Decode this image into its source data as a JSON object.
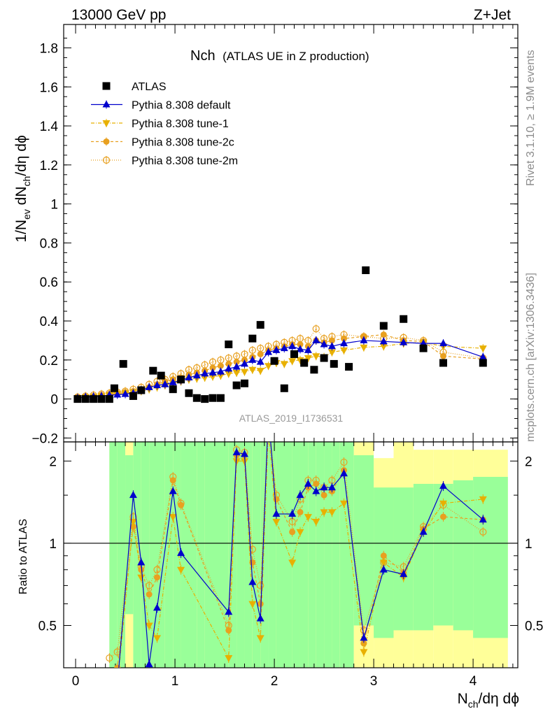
{
  "header": {
    "left": "13000 GeV pp",
    "right": "Z+Jet"
  },
  "side": {
    "rivet": "Rivet 3.1.10, ≥ 1.9M events",
    "mcplots": "mcplots.cern.ch [arXiv:1306.3436]"
  },
  "chart_data": {
    "type": "line",
    "title_main": "Nch",
    "title_sub": "(ATLAS UE in Z production)",
    "analysis_label": "ATLAS_2019_I1736531",
    "xlabel": {
      "base": "N",
      "sub": "ch",
      "rest": "/dη dϕ"
    },
    "ylabel": {
      "parts": [
        "1/N",
        "ev",
        " dN",
        "ch",
        "/dη dϕ"
      ]
    },
    "ratio_ylabel": "Ratio to ATLAS",
    "xlim": [
      -0.12,
      4.45
    ],
    "ylim": [
      -0.22,
      1.92
    ],
    "ratio_ylim": [
      0.35,
      2.35
    ],
    "x_ticks": [
      0,
      1,
      2,
      3,
      4
    ],
    "y_ticks": [
      -0.2,
      0,
      0.2,
      0.4,
      0.6,
      0.8,
      1,
      1.2,
      1.4,
      1.6,
      1.8
    ],
    "y_tick_labels": [
      "−0.2",
      "0",
      "0.2",
      "0.4",
      "0.6",
      "0.8",
      "1",
      "1.2",
      "1.4",
      "1.6",
      "1.8"
    ],
    "ratio_ticks": [
      0.5,
      1,
      2
    ],
    "ratio_tick_labels": [
      "0.5",
      "1",
      "2"
    ],
    "legend": [
      {
        "label": "ATLAS",
        "marker": "square",
        "color": "#000000",
        "dash": ""
      },
      {
        "label": "Pythia 8.308 default",
        "marker": "triangle-up",
        "color": "#0000cc",
        "dash": ""
      },
      {
        "label": "Pythia 8.308 tune-1",
        "marker": "triangle-down",
        "color": "#e8b000",
        "dash": "5,2,1,2"
      },
      {
        "label": "Pythia 8.308 tune-2c",
        "marker": "circle",
        "color": "#e8a020",
        "dash": "4,3"
      },
      {
        "label": "Pythia 8.308 tune-2m",
        "marker": "circle-open",
        "color": "#e8a020",
        "dash": "1,2"
      }
    ],
    "x": [
      0.02,
      0.1,
      0.18,
      0.26,
      0.34,
      0.42,
      0.5,
      0.58,
      0.66,
      0.74,
      0.82,
      0.9,
      0.98,
      1.06,
      1.14,
      1.22,
      1.3,
      1.38,
      1.46,
      1.54,
      1.62,
      1.7,
      1.78,
      1.86,
      1.94,
      2.02,
      2.1,
      2.18,
      2.26,
      2.34,
      2.42,
      2.5,
      2.58,
      2.7,
      2.9,
      3.1,
      3.3,
      3.5,
      3.7,
      4.1
    ],
    "atlas": [
      0.0,
      0.0,
      0.0,
      0.0,
      0.0,
      0.055,
      0.18,
      0.015,
      0.045,
      0.145,
      0.12,
      0.05,
      0.1,
      0.03,
      0.005,
      0.0,
      0.005,
      0.005,
      0.28,
      0.07,
      0.08,
      0.31,
      0.38,
      0.195,
      0.055,
      0.23,
      0.185,
      0.15,
      0.21,
      0.18,
      0.165,
      0.66,
      0.375,
      0.41,
      0.26,
      0.185,
      0.185
    ],
    "atlas_x": [
      0.02,
      0.1,
      0.18,
      0.26,
      0.34,
      0.39,
      0.48,
      0.58,
      0.66,
      0.78,
      0.86,
      0.98,
      1.06,
      1.14,
      1.22,
      1.3,
      1.38,
      1.46,
      1.54,
      1.62,
      1.7,
      1.78,
      1.86,
      2.0,
      2.1,
      2.2,
      2.3,
      2.4,
      2.5,
      2.6,
      2.75,
      2.92,
      3.1,
      3.3,
      3.5,
      3.7,
      4.1
    ],
    "series": [
      {
        "name": "Pythia 8.308 default",
        "values": [
          0.005,
          0.01,
          0.012,
          0.015,
          0.02,
          0.022,
          0.025,
          0.03,
          0.045,
          0.06,
          0.07,
          0.075,
          0.085,
          0.095,
          0.11,
          0.12,
          0.13,
          0.135,
          0.14,
          0.155,
          0.165,
          0.18,
          0.2,
          0.19,
          0.24,
          0.25,
          0.26,
          0.27,
          0.255,
          0.25,
          0.3,
          0.28,
          0.27,
          0.285,
          0.3,
          0.295,
          0.29,
          0.285,
          0.285,
          0.215
        ]
      },
      {
        "name": "Pythia 8.308 tune-1",
        "values": [
          0.005,
          0.01,
          0.012,
          0.015,
          0.02,
          0.025,
          0.03,
          0.035,
          0.04,
          0.05,
          0.06,
          0.07,
          0.08,
          0.09,
          0.1,
          0.105,
          0.11,
          0.115,
          0.12,
          0.13,
          0.135,
          0.14,
          0.15,
          0.145,
          0.17,
          0.185,
          0.18,
          0.195,
          0.2,
          0.21,
          0.22,
          0.215,
          0.24,
          0.25,
          0.265,
          0.27,
          0.285,
          0.29,
          0.27,
          0.26
        ]
      },
      {
        "name": "Pythia 8.308 tune-2c",
        "values": [
          0.008,
          0.012,
          0.015,
          0.02,
          0.025,
          0.03,
          0.035,
          0.04,
          0.05,
          0.06,
          0.075,
          0.09,
          0.1,
          0.11,
          0.125,
          0.135,
          0.145,
          0.16,
          0.17,
          0.18,
          0.19,
          0.2,
          0.215,
          0.23,
          0.25,
          0.26,
          0.27,
          0.28,
          0.28,
          0.27,
          0.3,
          0.29,
          0.3,
          0.31,
          0.32,
          0.33,
          0.3,
          0.295,
          0.22,
          0.205
        ]
      },
      {
        "name": "Pythia 8.308 tune-2m",
        "values": [
          0.01,
          0.015,
          0.02,
          0.025,
          0.03,
          0.035,
          0.04,
          0.05,
          0.06,
          0.075,
          0.09,
          0.1,
          0.115,
          0.13,
          0.15,
          0.16,
          0.175,
          0.19,
          0.2,
          0.21,
          0.22,
          0.23,
          0.25,
          0.26,
          0.27,
          0.28,
          0.29,
          0.3,
          0.31,
          0.3,
          0.36,
          0.31,
          0.32,
          0.33,
          0.32,
          0.31,
          0.315,
          0.3,
          0.24,
          0.21
        ]
      }
    ],
    "ratio": {
      "x": [
        0.34,
        0.42,
        0.58,
        0.66,
        0.74,
        0.82,
        0.98,
        1.06,
        1.54,
        1.62,
        1.7,
        1.78,
        1.86,
        1.94,
        2.02,
        2.18,
        2.26,
        2.34,
        2.42,
        2.5,
        2.58,
        2.7,
        2.9,
        3.1,
        3.3,
        3.5,
        3.7,
        4.1
      ],
      "series": [
        {
          "name": "Pythia 8.308 default",
          "values": [
            0.2,
            0.3,
            1.5,
            0.85,
            0.36,
            0.58,
            1.55,
            0.92,
            0.56,
            2.15,
            2.12,
            0.72,
            0.53,
            3.0,
            1.28,
            1.28,
            1.5,
            1.65,
            1.55,
            1.6,
            1.6,
            1.8,
            0.45,
            0.8,
            0.77,
            1.1,
            1.62,
            1.22
          ]
        },
        {
          "name": "Pythia 8.308 tune-1",
          "values": [
            0.25,
            0.3,
            1.2,
            0.75,
            0.5,
            0.45,
            1.25,
            0.8,
            0.38,
            2.0,
            2.0,
            0.6,
            0.45,
            2.6,
            1.2,
            0.85,
            1.1,
            1.25,
            1.2,
            1.3,
            1.3,
            1.4,
            0.4,
            0.85,
            0.75,
            1.1,
            1.4,
            1.45
          ]
        },
        {
          "name": "Pythia 8.308 tune-2c",
          "values": [
            0.3,
            0.35,
            1.15,
            0.8,
            0.65,
            0.75,
            1.7,
            1.38,
            0.48,
            2.1,
            2.1,
            0.85,
            0.6,
            2.8,
            1.45,
            1.1,
            1.3,
            1.6,
            1.65,
            1.5,
            1.55,
            1.85,
            0.43,
            0.9,
            0.78,
            1.13,
            1.25,
            1.22
          ]
        },
        {
          "name": "Pythia 8.308 tune-2m",
          "values": [
            0.38,
            0.4,
            1.25,
            0.82,
            0.7,
            0.8,
            1.75,
            1.4,
            0.5,
            2.2,
            2.15,
            0.95,
            0.7,
            2.9,
            1.5,
            1.2,
            1.45,
            1.7,
            1.7,
            1.6,
            1.7,
            1.98,
            0.48,
            0.85,
            0.82,
            1.15,
            1.38,
            1.1
          ]
        }
      ],
      "bands": {
        "edges": [
          0.34,
          0.42,
          0.5,
          0.58,
          0.66,
          0.74,
          0.82,
          0.9,
          0.98,
          1.06,
          1.22,
          1.3,
          1.38,
          1.54,
          1.62,
          1.7,
          1.78,
          1.86,
          1.94,
          2.02,
          2.18,
          2.26,
          2.34,
          2.42,
          2.5,
          2.58,
          2.66,
          2.8,
          3.0,
          3.2,
          3.4,
          3.6,
          3.8,
          4.0,
          4.35
        ],
        "green": [
          [
            0.35,
            2.35
          ],
          [
            0.35,
            2.35
          ],
          [
            0.55,
            2.1
          ],
          [
            0.35,
            2.35
          ],
          [
            0.35,
            2.35
          ],
          [
            0.35,
            2.35
          ],
          [
            0.35,
            2.35
          ],
          [
            0.35,
            2.35
          ],
          [
            0.35,
            2.35
          ],
          [
            0.35,
            2.35
          ],
          [
            0.35,
            2.35
          ],
          [
            0.35,
            2.35
          ],
          [
            0.35,
            2.35
          ],
          [
            0.35,
            2.35
          ],
          [
            0.35,
            2.35
          ],
          [
            0.35,
            2.35
          ],
          [
            0.35,
            2.35
          ],
          [
            0.35,
            2.35
          ],
          [
            0.35,
            2.35
          ],
          [
            0.35,
            2.35
          ],
          [
            0.35,
            2.35
          ],
          [
            0.35,
            2.35
          ],
          [
            0.35,
            2.35
          ],
          [
            0.35,
            2.35
          ],
          [
            0.35,
            2.35
          ],
          [
            0.35,
            2.35
          ],
          [
            0.35,
            2.35
          ],
          [
            0.5,
            2.1
          ],
          [
            0.45,
            1.6
          ],
          [
            0.48,
            1.6
          ],
          [
            0.48,
            1.65
          ],
          [
            0.5,
            1.65
          ],
          [
            0.48,
            1.7
          ],
          [
            0.45,
            1.75
          ],
          [
            0.45,
            1.7
          ]
        ],
        "yellow": [
          [
            0.35,
            2.35
          ],
          [
            0.35,
            2.35
          ],
          [
            0.35,
            2.35
          ],
          [
            0.35,
            2.35
          ],
          [
            0.35,
            2.35
          ],
          [
            0.35,
            2.35
          ],
          [
            0.35,
            2.35
          ],
          [
            0.35,
            2.35
          ],
          [
            0.35,
            2.35
          ],
          [
            0.35,
            2.35
          ],
          [
            0.35,
            2.35
          ],
          [
            0.35,
            2.35
          ],
          [
            0.35,
            2.35
          ],
          [
            0.35,
            2.35
          ],
          [
            0.35,
            2.35
          ],
          [
            0.35,
            2.35
          ],
          [
            0.35,
            2.35
          ],
          [
            0.35,
            2.35
          ],
          [
            0.35,
            2.35
          ],
          [
            0.35,
            2.35
          ],
          [
            0.35,
            2.35
          ],
          [
            0.35,
            2.35
          ],
          [
            0.35,
            2.35
          ],
          [
            0.35,
            2.35
          ],
          [
            0.35,
            2.35
          ],
          [
            0.35,
            2.35
          ],
          [
            0.35,
            2.35
          ],
          [
            0.35,
            2.35
          ],
          [
            0.35,
            2.05
          ],
          [
            0.35,
            2.35
          ],
          [
            0.35,
            2.2
          ],
          [
            0.35,
            2.2
          ],
          [
            0.35,
            2.2
          ],
          [
            0.35,
            2.2
          ],
          [
            0.35,
            2.2
          ]
        ]
      }
    },
    "grid": false,
    "legend_position": "top-left"
  }
}
